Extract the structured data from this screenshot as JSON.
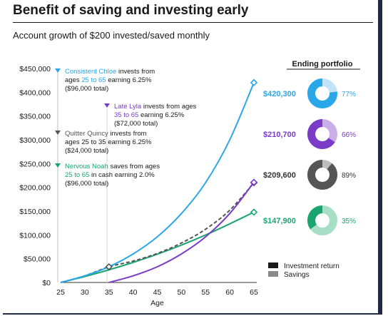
{
  "title": "Benefit of saving and investing early",
  "subtitle": "Account growth of $200 invested/saved monthly",
  "chart_data": {
    "type": "line",
    "xlabel": "Age",
    "ylabel": "",
    "x_ticks": [
      25,
      30,
      35,
      40,
      45,
      50,
      55,
      60,
      65
    ],
    "y_ticks": [
      0,
      50000,
      100000,
      150000,
      200000,
      250000,
      300000,
      350000,
      400000,
      450000
    ],
    "y_tick_labels": [
      "$0",
      "$50,000",
      "$100,000",
      "$150,000",
      "$200,000",
      "$250,000",
      "$300,000",
      "$350,000",
      "$400,000",
      "$450,000"
    ],
    "xlim": [
      25,
      65
    ],
    "ylim": [
      0,
      450000
    ],
    "grid": false,
    "series": [
      {
        "name": "Consistent Chloe",
        "color": "#2aa7e8",
        "style": "solid",
        "x": [
          25,
          30,
          35,
          40,
          45,
          50,
          55,
          60,
          65
        ],
        "y": [
          0,
          14000,
          33000,
          60000,
          96000,
          145000,
          210000,
          300000,
          420300
        ],
        "note_name": "Consistent Chloe",
        "note_pre": " invests from",
        "note_line2a": "ages ",
        "note_range": "25 to 65",
        "note_line2b": " earning 6.25%",
        "note_line3": "($96,000 total)",
        "ending_value": "$420,300",
        "ending_pct": "77%"
      },
      {
        "name": "Late Lyla",
        "color": "#7a3cc7",
        "style": "solid",
        "x": [
          35,
          40,
          45,
          50,
          55,
          60,
          65
        ],
        "y": [
          0,
          14000,
          33000,
          60000,
          96000,
          145000,
          210700
        ],
        "note_name": "Late Lyla",
        "note_pre": " invests from ages",
        "note_line2a": "",
        "note_range": "35 to 65",
        "note_line2b": " earning 6.25%",
        "note_line3": "($72,000 total)",
        "ending_value": "$210,700",
        "ending_pct": "66%"
      },
      {
        "name": "Quitter Quincy",
        "color": "#555555",
        "style": "dashed",
        "x": [
          25,
          30,
          35,
          40,
          45,
          50,
          55,
          60,
          65
        ],
        "y": [
          0,
          14000,
          33000,
          45000,
          61000,
          83000,
          112000,
          152000,
          209600
        ],
        "note_name": "Quitter Quincy",
        "note_pre": " invests from",
        "note_line2a": "ages 25 to 35 earning 6.25%",
        "note_range": "",
        "note_line2b": "",
        "note_line3": "($24,000 total)",
        "ending_value": "$209,600",
        "ending_pct": "89%"
      },
      {
        "name": "Nervous Noah",
        "color": "#1aa570",
        "style": "solid",
        "x": [
          25,
          30,
          35,
          40,
          45,
          50,
          55,
          60,
          65
        ],
        "y": [
          0,
          12500,
          26600,
          42200,
          59500,
          78700,
          99900,
          123300,
          147900
        ],
        "note_name": "Nervous Noah",
        "note_pre": " saves from ages",
        "note_line2a": "",
        "note_range": "25 to 65",
        "note_line2b": " in cash earning 2.0%",
        "note_line3": "($96,000 total)",
        "ending_value": "$147,900",
        "ending_pct": "35%"
      }
    ],
    "ending_header": "Ending portfolio",
    "legend": [
      {
        "label": "Investment return",
        "color": "#1a1a1a"
      },
      {
        "label": "Savings",
        "color": "#8a8a8a"
      }
    ]
  }
}
